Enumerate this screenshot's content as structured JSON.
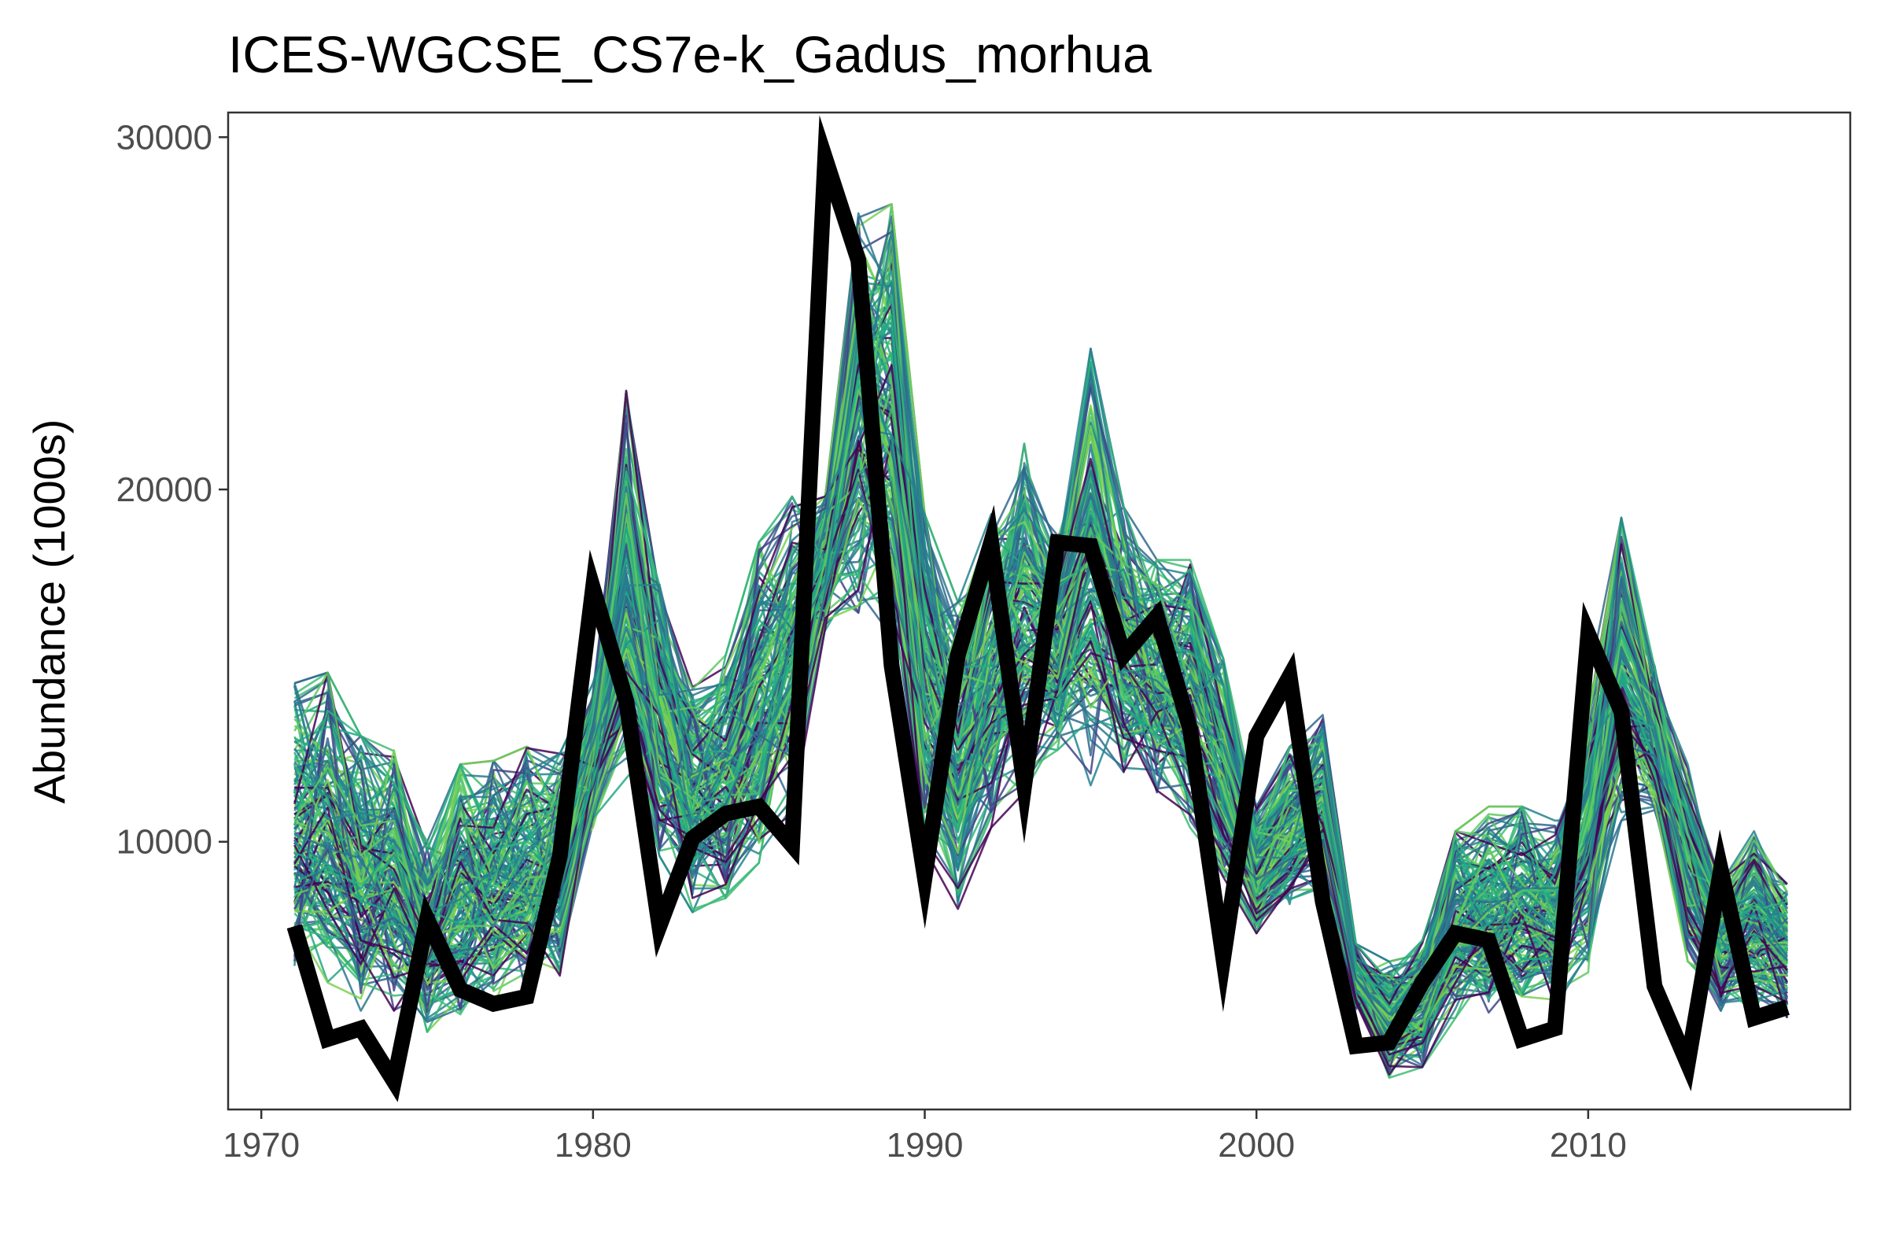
{
  "chart_data": {
    "type": "line",
    "title": "ICES-WGCSE_CS7e-k_Gadus_morhua",
    "xlabel": "",
    "ylabel": "Abundance (1000s)",
    "xlim": [
      1969,
      2017.9
    ],
    "ylim": [
      2400,
      30700
    ],
    "x_ticks": [
      1970,
      1980,
      1990,
      2000,
      2010
    ],
    "y_ticks": [
      10000,
      20000,
      30000
    ],
    "grid": false,
    "legend": "none",
    "x": [
      1971,
      1972,
      1973,
      1974,
      1975,
      1976,
      1977,
      1978,
      1979,
      1980,
      1981,
      1982,
      1983,
      1984,
      1985,
      1986,
      1987,
      1988,
      1989,
      1990,
      1991,
      1992,
      1993,
      1994,
      1995,
      1996,
      1997,
      1998,
      1999,
      2000,
      2001,
      2002,
      2003,
      2004,
      2005,
      2006,
      2007,
      2008,
      2009,
      2010,
      2011,
      2012,
      2013,
      2014,
      2015,
      2016
    ],
    "observed": {
      "color": "#000000",
      "values": [
        7600,
        4400,
        4700,
        3200,
        7800,
        5800,
        5400,
        5600,
        9600,
        17200,
        14000,
        7600,
        10100,
        10800,
        11000,
        9900,
        29400,
        26500,
        15000,
        9000,
        15300,
        18500,
        11600,
        18500,
        18400,
        15300,
        16400,
        13200,
        6700,
        13000,
        14700,
        8300,
        4200,
        4300,
        6000,
        7400,
        7200,
        4400,
        4700,
        15900,
        13700,
        5900,
        3700,
        9200,
        5000,
        5300
      ]
    },
    "ensemble": {
      "palette": [
        "#440154",
        "#414487",
        "#2a788e",
        "#22a884",
        "#7ad151",
        "#5ec962",
        "#3fbc73",
        "#2fb47c",
        "#26828e",
        "#31688e"
      ],
      "envelope_low": [
        6300,
        6000,
        5200,
        5200,
        4600,
        5100,
        5300,
        5700,
        6200,
        10400,
        11800,
        9600,
        8000,
        8400,
        9400,
        10800,
        16000,
        16500,
        15300,
        9800,
        7900,
        10400,
        11400,
        12600,
        11600,
        11800,
        11400,
        10400,
        9000,
        7400,
        8100,
        8400,
        5200,
        3300,
        3600,
        5000,
        5100,
        5000,
        5300,
        5800,
        10600,
        10900,
        6600,
        5200,
        5200,
        5000
      ],
      "envelope_high": [
        14500,
        14800,
        13000,
        12600,
        10000,
        12200,
        12300,
        12700,
        12500,
        14500,
        22800,
        17300,
        14500,
        15300,
        18500,
        19800,
        19800,
        28300,
        28100,
        19300,
        16800,
        19300,
        21300,
        18700,
        24000,
        19500,
        18000,
        18000,
        15200,
        11000,
        12700,
        13600,
        7100,
        6600,
        7200,
        10300,
        11000,
        11000,
        10600,
        14500,
        19200,
        15000,
        12200,
        9000,
        10300,
        8800
      ]
    }
  }
}
